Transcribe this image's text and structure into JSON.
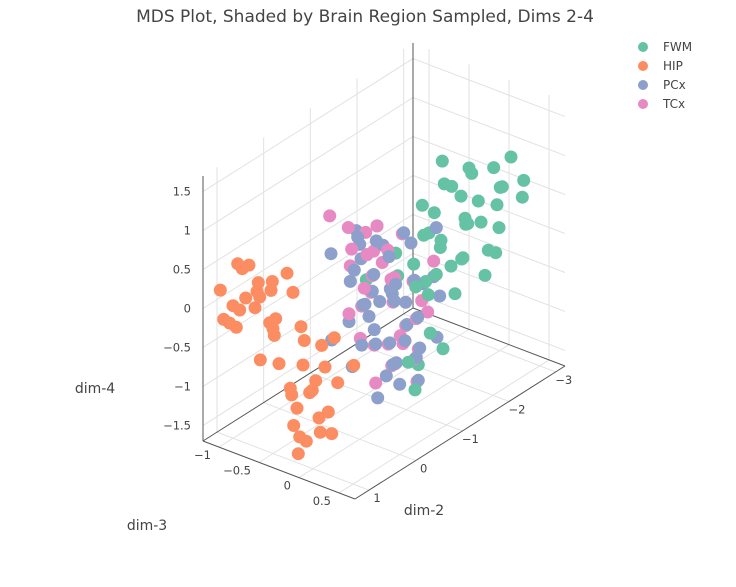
{
  "chart_data": {
    "type": "scatter3d",
    "title": "MDS Plot, Shaded by Brain Region Sampled, Dims 2-4",
    "axes": {
      "x": {
        "label": "dim-2",
        "range": [
          -3.2,
          1.3
        ],
        "ticks": [
          -3,
          -2,
          -1,
          0,
          1
        ],
        "tick_labels": [
          "−3",
          "−2",
          "−1",
          "0",
          "1"
        ]
      },
      "y": {
        "label": "dim-3",
        "range": [
          -1.2,
          0.7
        ],
        "ticks": [
          -1,
          -0.5,
          0,
          0.5
        ],
        "tick_labels": [
          "−1",
          "−0.5",
          "0",
          "0.5"
        ]
      },
      "z": {
        "label": "dim-4",
        "range": [
          -1.7,
          1.7
        ],
        "ticks": [
          -1.5,
          -1,
          -0.5,
          0,
          0.5,
          1,
          1.5
        ],
        "tick_labels": [
          "−1.5",
          "−1",
          "−0.5",
          "0",
          "0.5",
          "1",
          "1.5"
        ]
      }
    },
    "legend_position": "top-right",
    "series": [
      {
        "name": "FWM",
        "color": "#66c2a5",
        "points": [
          [
            -2.9,
            0.2,
            0.9
          ],
          [
            -2.7,
            0.1,
            0.8
          ],
          [
            -2.5,
            0.3,
            0.7
          ],
          [
            -2.4,
            0.0,
            0.8
          ],
          [
            -2.2,
            0.2,
            0.6
          ],
          [
            -2.0,
            0.1,
            0.7
          ],
          [
            -1.8,
            0.3,
            0.5
          ],
          [
            -1.6,
            0.0,
            0.6
          ],
          [
            -1.4,
            0.2,
            0.4
          ],
          [
            -1.2,
            0.1,
            0.5
          ],
          [
            -2.8,
            0.4,
            0.5
          ],
          [
            -2.6,
            0.2,
            0.4
          ],
          [
            -2.3,
            0.4,
            0.3
          ],
          [
            -2.1,
            0.1,
            0.3
          ],
          [
            -1.9,
            0.5,
            0.2
          ],
          [
            -1.7,
            0.3,
            0.1
          ],
          [
            -1.5,
            0.4,
            0.2
          ],
          [
            -1.3,
            0.2,
            0.0
          ],
          [
            -1.1,
            0.5,
            0.3
          ],
          [
            -0.9,
            0.3,
            0.1
          ],
          [
            -2.0,
            0.2,
            1.1
          ],
          [
            -1.6,
            0.1,
            1.3
          ],
          [
            -1.3,
            0.3,
            1.2
          ],
          [
            -1.0,
            0.2,
            1.0
          ],
          [
            -0.8,
            0.4,
            0.8
          ],
          [
            -2.4,
            0.3,
            -0.1
          ],
          [
            -2.0,
            0.4,
            -0.2
          ],
          [
            -1.7,
            0.2,
            -0.4
          ],
          [
            -1.3,
            0.1,
            -0.3
          ],
          [
            -1.0,
            0.3,
            -0.6
          ],
          [
            -0.7,
            0.2,
            -0.9
          ],
          [
            -0.5,
            0.4,
            -1.1
          ],
          [
            -1.9,
            -0.1,
            0.0
          ],
          [
            -1.5,
            -0.2,
            -0.1
          ],
          [
            -1.2,
            0.0,
            -0.2
          ],
          [
            -2.6,
            0.0,
            0.1
          ],
          [
            -3.0,
            0.3,
            0.6
          ],
          [
            -2.2,
            0.5,
            0.9
          ],
          [
            -1.8,
            0.1,
            0.9
          ],
          [
            -0.6,
            0.1,
            0.5
          ],
          [
            -0.3,
            0.3,
            0.4
          ],
          [
            -0.4,
            0.5,
            -0.7
          ],
          [
            -1.1,
            0.4,
            -0.8
          ],
          [
            -1.4,
            0.5,
            0.8
          ],
          [
            0.2,
            0.2,
            0.5
          ],
          [
            -0.2,
            0.1,
            1.0
          ]
        ]
      },
      {
        "name": "HIP",
        "color": "#fc8d62",
        "points": [
          [
            0.8,
            -0.8,
            0.3
          ],
          [
            0.9,
            -0.9,
            0.1
          ],
          [
            1.0,
            -1.0,
            0.0
          ],
          [
            0.7,
            -0.7,
            0.2
          ],
          [
            0.9,
            -0.6,
            -0.1
          ],
          [
            1.1,
            -0.9,
            -0.2
          ],
          [
            0.8,
            -1.0,
            0.4
          ],
          [
            1.0,
            -0.7,
            0.3
          ],
          [
            0.6,
            -0.9,
            0.0
          ],
          [
            0.9,
            -1.1,
            -0.3
          ],
          [
            1.2,
            -0.8,
            0.1
          ],
          [
            0.7,
            -0.5,
            0.5
          ],
          [
            1.1,
            -1.1,
            0.2
          ],
          [
            0.8,
            -0.6,
            -0.3
          ],
          [
            1.0,
            -0.5,
            -0.1
          ],
          [
            0.6,
            -0.7,
            -0.2
          ],
          [
            0.5,
            -0.4,
            -0.4
          ],
          [
            0.7,
            -0.3,
            -0.6
          ],
          [
            0.6,
            -0.2,
            -0.8
          ],
          [
            0.5,
            -0.3,
            -1.0
          ],
          [
            0.8,
            -0.4,
            -0.9
          ],
          [
            0.7,
            -0.1,
            -1.2
          ],
          [
            0.9,
            -0.3,
            -1.3
          ],
          [
            0.6,
            -0.5,
            -1.1
          ],
          [
            1.0,
            -0.2,
            -1.0
          ],
          [
            0.4,
            -0.2,
            -0.7
          ],
          [
            0.8,
            -0.2,
            -1.5
          ],
          [
            0.6,
            0.0,
            -1.4
          ],
          [
            0.5,
            -0.1,
            -1.2
          ],
          [
            0.9,
            -0.1,
            -0.8
          ],
          [
            0.3,
            -0.3,
            -0.5
          ],
          [
            0.7,
            -0.6,
            -0.7
          ],
          [
            1.1,
            -0.6,
            -0.5
          ],
          [
            0.4,
            -0.5,
            -0.3
          ],
          [
            0.3,
            -0.1,
            -0.9
          ],
          [
            0.9,
            -1.0,
            0.5
          ],
          [
            1.2,
            -1.0,
            -0.1
          ],
          [
            0.5,
            -0.8,
            0.2
          ],
          [
            0.4,
            -0.6,
            0.1
          ],
          [
            0.8,
            -0.3,
            -1.7
          ],
          [
            0.6,
            -0.4,
            -1.6
          ],
          [
            0.3,
            0.1,
            -0.6
          ],
          [
            0.2,
            -0.2,
            -0.4
          ],
          [
            1.0,
            -0.8,
            0.6
          ],
          [
            0.7,
            -0.9,
            -0.1
          ],
          [
            0.5,
            -0.2,
            -1.5
          ]
        ]
      },
      {
        "name": "PCx",
        "color": "#8da0cb",
        "points": [
          [
            -0.5,
            -0.2,
            0.4
          ],
          [
            -0.3,
            0.0,
            0.3
          ],
          [
            -0.6,
            0.1,
            0.1
          ],
          [
            -0.2,
            -0.1,
            0.5
          ],
          [
            -0.4,
            0.2,
            0.0
          ],
          [
            -0.7,
            0.0,
            -0.1
          ],
          [
            -0.1,
            0.1,
            0.2
          ],
          [
            -0.8,
            -0.1,
            0.3
          ],
          [
            -0.5,
            0.3,
            -0.3
          ],
          [
            -0.3,
            0.2,
            -0.5
          ],
          [
            -0.6,
            0.4,
            -0.6
          ],
          [
            -0.9,
            0.2,
            -0.4
          ],
          [
            -0.2,
            0.3,
            -0.7
          ],
          [
            -0.4,
            0.5,
            -0.9
          ],
          [
            -0.7,
            0.3,
            -0.8
          ],
          [
            0.0,
            0.2,
            -0.4
          ],
          [
            -0.1,
            0.4,
            -0.6
          ],
          [
            0.1,
            0.1,
            0.1
          ],
          [
            0.2,
            0.0,
            0.4
          ],
          [
            -1.0,
            0.1,
            0.0
          ],
          [
            -1.2,
            0.3,
            -0.2
          ],
          [
            -0.8,
            0.5,
            -0.5
          ],
          [
            -0.5,
            0.0,
            0.6
          ],
          [
            -0.3,
            -0.2,
            0.7
          ],
          [
            0.1,
            -0.3,
            0.6
          ],
          [
            -0.6,
            0.2,
            0.8
          ],
          [
            -0.2,
            0.0,
            -0.2
          ],
          [
            0.3,
            0.2,
            -0.3
          ],
          [
            -0.4,
            0.1,
            -1.0
          ],
          [
            0.0,
            0.5,
            -0.8
          ],
          [
            -0.9,
            0.4,
            0.2
          ],
          [
            -0.7,
            -0.2,
            0.5
          ],
          [
            0.4,
            0.1,
            0.0
          ],
          [
            0.2,
            0.3,
            -0.1
          ],
          [
            -1.1,
            0.0,
            0.4
          ],
          [
            -0.3,
            0.4,
            0.1
          ],
          [
            -0.6,
            -0.1,
            -0.2
          ],
          [
            0.5,
            0.2,
            -0.5
          ],
          [
            0.3,
            0.4,
            -0.9
          ],
          [
            -0.5,
            0.5,
            0.3
          ],
          [
            -0.8,
            0.1,
            -0.7
          ],
          [
            -0.1,
            -0.1,
            0.9
          ],
          [
            0.0,
            0.0,
            0.8
          ],
          [
            -1.3,
            0.2,
            0.6
          ],
          [
            0.6,
            0.0,
            -0.2
          ],
          [
            0.2,
            0.5,
            0.5
          ],
          [
            -0.4,
            -0.3,
            0.2
          ],
          [
            0.4,
            0.3,
            0.3
          ]
        ]
      },
      {
        "name": "TCx",
        "color": "#e78ac3",
        "points": [
          [
            -0.3,
            0.0,
            0.6
          ],
          [
            -0.1,
            0.1,
            0.4
          ],
          [
            -0.4,
            0.2,
            0.3
          ],
          [
            0.0,
            -0.1,
            0.7
          ],
          [
            -0.2,
            0.3,
            0.1
          ],
          [
            -0.5,
            0.1,
            0.2
          ],
          [
            0.1,
            0.2,
            0.3
          ],
          [
            -0.6,
            0.0,
            0.5
          ],
          [
            -0.3,
            0.4,
            -0.2
          ],
          [
            -0.1,
            0.3,
            -0.4
          ],
          [
            -0.4,
            0.5,
            -0.5
          ],
          [
            -0.7,
            0.3,
            -0.3
          ],
          [
            0.0,
            0.4,
            -0.6
          ],
          [
            -0.2,
            0.6,
            -0.8
          ],
          [
            -0.5,
            0.4,
            -0.7
          ],
          [
            0.2,
            0.3,
            -0.3
          ],
          [
            0.3,
            0.2,
            0.2
          ],
          [
            -0.8,
            0.2,
            0.1
          ],
          [
            -0.3,
            -0.1,
            0.8
          ],
          [
            -0.1,
            -0.2,
            0.9
          ],
          [
            0.2,
            0.0,
            0.6
          ],
          [
            -0.4,
            0.3,
            0.9
          ],
          [
            0.4,
            0.1,
            0.1
          ],
          [
            -0.6,
            0.5,
            -0.1
          ],
          [
            0.1,
            0.5,
            -0.5
          ],
          [
            -0.9,
            0.4,
            0.4
          ],
          [
            0.3,
            -0.2,
            1.2
          ],
          [
            -0.2,
            0.1,
            1.0
          ],
          [
            0.0,
            0.2,
            -0.9
          ],
          [
            -0.5,
            -0.2,
            0.4
          ],
          [
            0.5,
            0.3,
            -0.1
          ],
          [
            -0.3,
            0.6,
            0.2
          ],
          [
            0.2,
            0.4,
            0.8
          ],
          [
            -0.7,
            0.1,
            -0.6
          ],
          [
            0.1,
            0.6,
            -0.2
          ],
          [
            -0.1,
            0.0,
            0.2
          ]
        ]
      }
    ]
  }
}
